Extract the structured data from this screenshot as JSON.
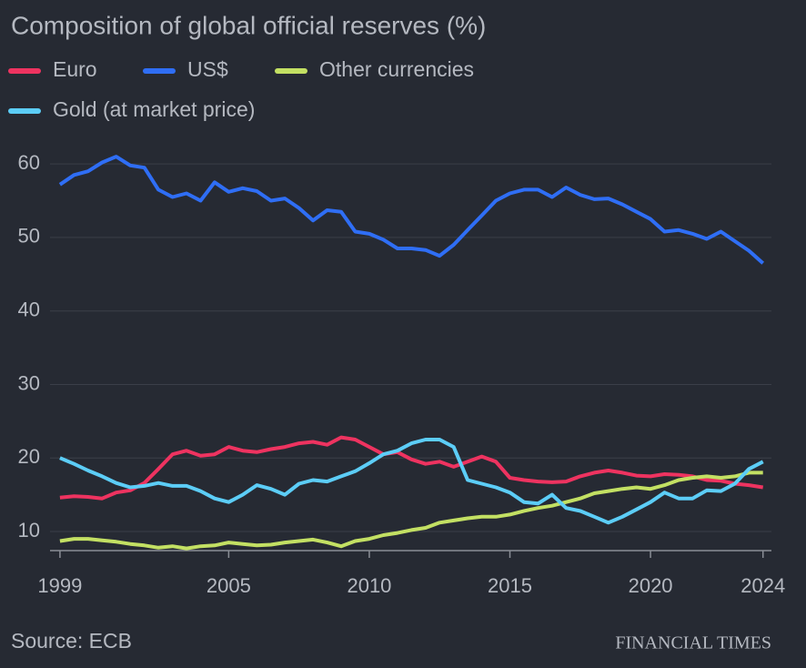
{
  "chart_data": {
    "type": "line",
    "title": "Composition of global official reserves (%)",
    "source": "Source: ECB",
    "publisher": "FINANCIAL TIMES",
    "x": [
      1999,
      1999.5,
      2000,
      2000.5,
      2001,
      2001.5,
      2002,
      2002.5,
      2003,
      2003.5,
      2004,
      2004.5,
      2005,
      2005.5,
      2006,
      2006.5,
      2007,
      2007.5,
      2008,
      2008.5,
      2009,
      2009.5,
      2010,
      2010.5,
      2011,
      2011.5,
      2012,
      2012.5,
      2013,
      2013.5,
      2014,
      2014.5,
      2015,
      2015.5,
      2016,
      2016.5,
      2017,
      2017.5,
      2018,
      2018.5,
      2019,
      2019.5,
      2020,
      2020.5,
      2021,
      2021.5,
      2022,
      2022.5,
      2023,
      2023.5,
      2024
    ],
    "series": [
      {
        "name": "Euro",
        "color": "#ee3360",
        "values": [
          14.6,
          14.8,
          14.7,
          14.5,
          15.3,
          15.6,
          16.6,
          18.5,
          20.5,
          21,
          20.3,
          20.5,
          21.5,
          21,
          20.8,
          21.2,
          21.5,
          22,
          22.2,
          21.8,
          22.8,
          22.5,
          21.5,
          20.5,
          20.8,
          19.8,
          19.2,
          19.5,
          18.8,
          19.5,
          20.2,
          19.5,
          17.3,
          17,
          16.8,
          16.7,
          16.8,
          17.5,
          18,
          18.3,
          18,
          17.6,
          17.5,
          17.8,
          17.7,
          17.5,
          17,
          16.9,
          16.5,
          16.3,
          16
        ]
      },
      {
        "name": "US$",
        "color": "#2f6ef5",
        "values": [
          57.2,
          58.5,
          59,
          60.2,
          61,
          59.8,
          59.5,
          56.5,
          55.5,
          56,
          55,
          57.5,
          56.2,
          56.7,
          56.3,
          55,
          55.3,
          54,
          52.3,
          53.7,
          53.5,
          50.8,
          50.5,
          49.7,
          48.5,
          48.5,
          48.3,
          47.5,
          49,
          51,
          53,
          55,
          56,
          56.5,
          56.5,
          55.5,
          56.8,
          55.8,
          55.2,
          55.3,
          54.5,
          53.5,
          52.5,
          50.8,
          51,
          50.5,
          49.8,
          50.8,
          49.5,
          48.2,
          46.5
        ]
      },
      {
        "name": "Other currencies",
        "color": "#c3e063",
        "values": [
          8.7,
          9,
          9,
          8.8,
          8.6,
          8.3,
          8.1,
          7.8,
          8,
          7.7,
          8,
          8.1,
          8.5,
          8.3,
          8.1,
          8.2,
          8.5,
          8.7,
          8.9,
          8.5,
          8,
          8.7,
          9,
          9.5,
          9.8,
          10.2,
          10.5,
          11.2,
          11.5,
          11.8,
          12,
          12,
          12.3,
          12.8,
          13.2,
          13.5,
          14,
          14.5,
          15.2,
          15.5,
          15.8,
          16,
          15.8,
          16.3,
          17,
          17.3,
          17.5,
          17.3,
          17.5,
          18,
          18
        ]
      },
      {
        "name": "Gold (at market price)",
        "color": "#5ccdf7",
        "values": [
          20,
          19.2,
          18.3,
          17.5,
          16.6,
          16,
          16.2,
          16.6,
          16.2,
          16.2,
          15.5,
          14.5,
          14,
          15,
          16.3,
          15.8,
          15,
          16.5,
          17,
          16.8,
          17.5,
          18.2,
          19.3,
          20.5,
          21,
          22,
          22.5,
          22.5,
          21.5,
          17,
          16.5,
          16,
          15.3,
          14,
          13.8,
          15,
          13.2,
          12.8,
          12,
          11.2,
          12,
          13,
          14,
          15.3,
          14.5,
          14.5,
          15.6,
          15.5,
          16.5,
          18.5,
          19.5
        ]
      }
    ],
    "xlim": [
      1998,
      2024.3
    ],
    "xticks": [
      1999,
      2005,
      2010,
      2015,
      2020,
      2024
    ],
    "ylim": [
      7.4,
      62
    ],
    "yticks": [
      10,
      20,
      30,
      40,
      50,
      60
    ],
    "grid": true
  }
}
